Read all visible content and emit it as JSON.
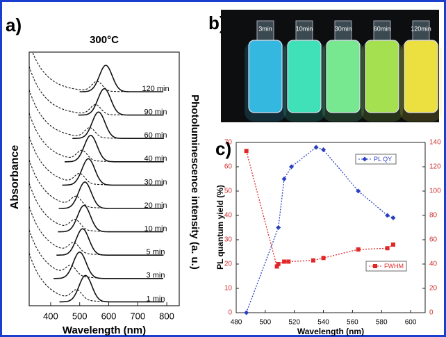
{
  "chart_data": [
    {
      "type": "spectra",
      "panel": "a)",
      "title": "300°C",
      "x_label": "Wavelength (nm)",
      "y_label": "Absorbance",
      "y2_label": "Photoluminescence intensity (a. u.)",
      "color": "#111111",
      "xlim": [
        326,
        843
      ],
      "xticks": [
        400,
        500,
        600,
        700,
        800
      ],
      "series": [
        {
          "name": "120 min",
          "peak": 590
        },
        {
          "name": "90 min",
          "peak": 585
        },
        {
          "name": "60 min",
          "peak": 565
        },
        {
          "name": "40 min",
          "peak": 538
        },
        {
          "name": "30 min",
          "peak": 530
        },
        {
          "name": "20 min",
          "peak": 518
        },
        {
          "name": "10 min",
          "peak": 515
        },
        {
          "name": "5 min",
          "peak": 510
        },
        {
          "name": "3 min",
          "peak": 500
        },
        {
          "name": "1 min",
          "peak": 520
        }
      ]
    },
    {
      "type": "line",
      "panel": "c)",
      "x_label": "Wavelength (nm)",
      "y_label": "PL quantum yield (%)",
      "xlim": [
        480,
        610
      ],
      "xticks": [
        480,
        500,
        520,
        540,
        560,
        580,
        600
      ],
      "ylim": [
        0,
        70
      ],
      "yticks": [
        0,
        10,
        20,
        30,
        40,
        50,
        60,
        70
      ],
      "y2lim": [
        0,
        140
      ],
      "y2ticks": [
        0,
        20,
        40,
        60,
        80,
        100,
        120,
        140
      ],
      "series": [
        {
          "name": "PL QY",
          "color": "#2a3fc0",
          "marker": "diamond",
          "x": [
            487,
            509,
            513,
            518,
            535,
            540,
            564,
            584,
            588
          ],
          "values": [
            0,
            35,
            55,
            60,
            68,
            67,
            50,
            40,
            39
          ]
        },
        {
          "name": "FWHM",
          "color": "#e02828",
          "marker": "square",
          "axis": "y2",
          "x": [
            487,
            508,
            509,
            513,
            516,
            533,
            540,
            564,
            584,
            588
          ],
          "values": [
            133,
            38,
            40,
            42,
            42,
            43,
            45,
            52,
            53,
            56
          ]
        }
      ]
    }
  ],
  "photo": {
    "panel": "b)",
    "labels": [
      "3min",
      "10min",
      "30min",
      "60min",
      "120min"
    ],
    "colors": [
      "#35b8e0",
      "#40e0b8",
      "#78e890",
      "#a4e050",
      "#ece040"
    ]
  }
}
